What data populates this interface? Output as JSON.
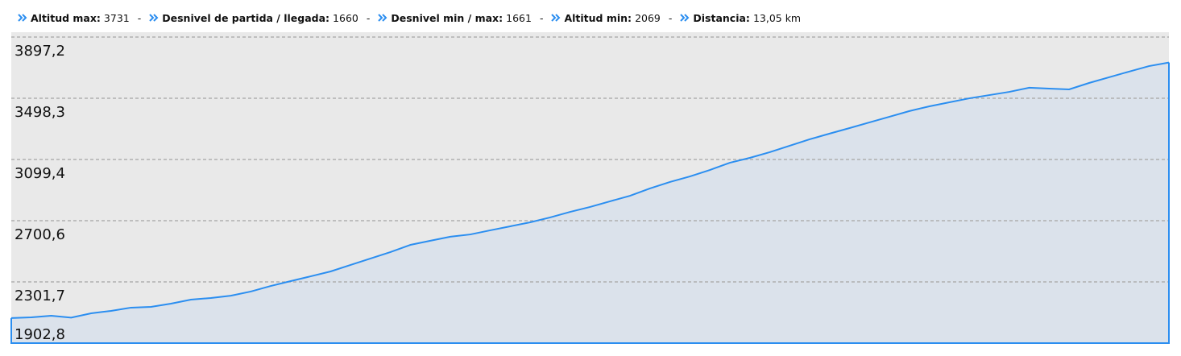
{
  "stats": {
    "separator": "-",
    "items": [
      {
        "label": "Altitud max:",
        "value": "3731"
      },
      {
        "label": "Desnivel de partida / llegada:",
        "value": "1660"
      },
      {
        "label": "Desnivel min / max:",
        "value": "1661"
      },
      {
        "label": "Altitud min:",
        "value": "2069"
      },
      {
        "label": "Distancia:",
        "value": "13,05 km"
      }
    ]
  },
  "chart_data": {
    "type": "area",
    "color": "#2b8ef0",
    "fill": "#dbe2eb",
    "background": "#e9e9e9",
    "grid": true,
    "ylim": [
      1902.8,
      3897.2
    ],
    "yticks": [
      {
        "value": 1902.8,
        "label": "1902,8"
      },
      {
        "value": 2301.7,
        "label": "2301,7"
      },
      {
        "value": 2700.6,
        "label": "2700,6"
      },
      {
        "value": 3099.4,
        "label": "3099,4"
      },
      {
        "value": 3498.3,
        "label": "3498,3"
      },
      {
        "value": 3897.2,
        "label": "3897,2"
      }
    ],
    "values": [
      2066,
      2071,
      2081,
      2069,
      2097,
      2113,
      2134,
      2139,
      2160,
      2186,
      2197,
      2212,
      2239,
      2275,
      2307,
      2338,
      2370,
      2412,
      2454,
      2496,
      2543,
      2570,
      2596,
      2611,
      2638,
      2664,
      2690,
      2722,
      2758,
      2790,
      2827,
      2863,
      2911,
      2953,
      2989,
      3031,
      3078,
      3110,
      3147,
      3189,
      3231,
      3268,
      3304,
      3341,
      3378,
      3415,
      3446,
      3472,
      3498,
      3519,
      3540,
      3567,
      3561,
      3556,
      3598,
      3635,
      3672,
      3708,
      3731
    ]
  }
}
